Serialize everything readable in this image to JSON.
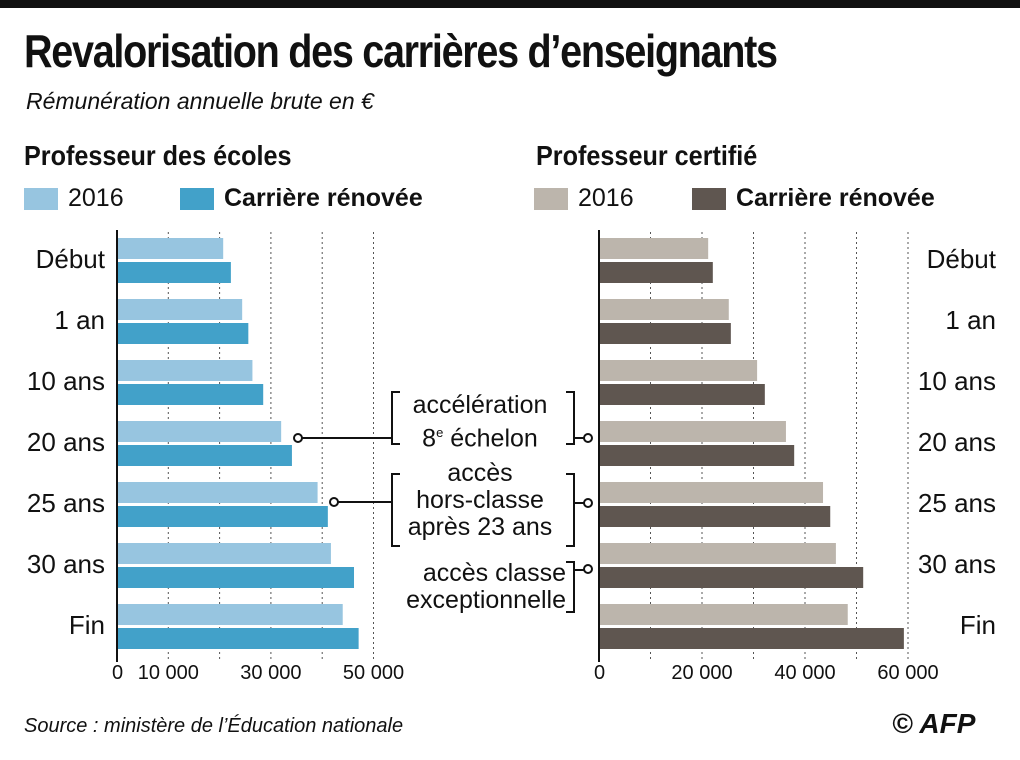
{
  "title": "Revalorisation des carrières d’enseignants",
  "subtitle": "Rémunération annuelle brute en €",
  "source": "Source : ministère de l’Éducation nationale",
  "credit": "© AFP",
  "annotations": {
    "a1_line1": "accélération",
    "a1_line2_num": "8",
    "a1_sup": "e",
    "a1_line2": " échelon",
    "a2_line1": "accès",
    "a2_line2": "hors-classe",
    "a2_line3": "après 23 ans",
    "a3_line1": "accès classe",
    "a3_line2": "exceptionnelle"
  },
  "chart_data": [
    {
      "type": "bar",
      "orientation": "horizontal",
      "title": "Professeur des écoles",
      "categories": [
        "Début",
        "1 an",
        "10 ans",
        "20 ans",
        "25 ans",
        "30 ans",
        "Fin"
      ],
      "series": [
        {
          "name": "2016",
          "color": "#97c5e0",
          "values": [
            20700,
            24400,
            26400,
            32000,
            39100,
            41700,
            44000
          ]
        },
        {
          "name": "Carrière rénovée",
          "color": "#42a1c9",
          "values": [
            22200,
            25600,
            28500,
            34100,
            41100,
            46200,
            47100
          ]
        }
      ],
      "xticks": [
        0,
        10000,
        30000,
        50000
      ],
      "xtick_labels": [
        "0",
        "10 000",
        "30 000",
        "50 000"
      ],
      "gridlines": [
        10000,
        20000,
        30000,
        40000,
        50000
      ],
      "xlim": [
        0,
        50000
      ]
    },
    {
      "type": "bar",
      "orientation": "horizontal",
      "title": "Professeur certifié",
      "categories": [
        "Début",
        "1 an",
        "10 ans",
        "20 ans",
        "25 ans",
        "30 ans",
        "Fin"
      ],
      "series": [
        {
          "name": "2016",
          "color": "#bcb5ac",
          "values": [
            21200,
            25200,
            30700,
            36300,
            43500,
            46000,
            48300
          ]
        },
        {
          "name": "Carrière rénovée",
          "color": "#5f5650",
          "values": [
            22100,
            25600,
            32200,
            37900,
            44900,
            51300,
            59200
          ]
        }
      ],
      "xticks": [
        0,
        20000,
        40000,
        60000
      ],
      "xtick_labels": [
        "0",
        "20 000",
        "40 000",
        "60 000"
      ],
      "gridlines": [
        10000,
        20000,
        30000,
        40000,
        50000,
        60000
      ],
      "xlim": [
        0,
        60000
      ]
    }
  ]
}
